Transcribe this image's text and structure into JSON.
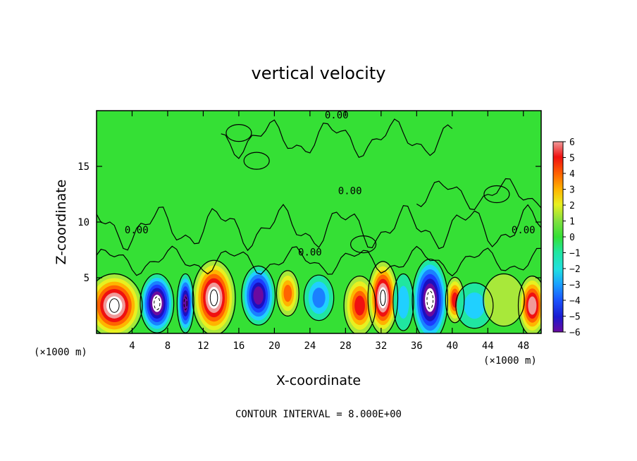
{
  "chart_data": {
    "type": "heatmap",
    "title": "vertical velocity",
    "xlabel": "X-coordinate",
    "ylabel": "Z-coordinate",
    "x_units_left": "(×1000 m)",
    "x_units_right": "(×1000 m)",
    "xlim": [
      0,
      50
    ],
    "ylim": [
      0,
      20
    ],
    "x_ticks": [
      4,
      8,
      12,
      16,
      20,
      24,
      28,
      32,
      36,
      40,
      44,
      48
    ],
    "y_ticks": [
      5,
      10,
      15
    ],
    "colorbar": {
      "range": [
        -6,
        6
      ],
      "ticks": [
        "6",
        "5",
        "4",
        "3",
        "2",
        "1",
        "0",
        "−1",
        "−2",
        "−3",
        "−4",
        "−5",
        "−6"
      ]
    },
    "contour_label": "0.00",
    "footer": "CONTOUR INTERVAL = 8.000E+00",
    "cells": [
      {
        "x": 2.0,
        "z": 2.5,
        "w": 6.5,
        "rx": 3.0,
        "rz": 2.8
      },
      {
        "x": 6.8,
        "z": 2.7,
        "w": -6.5,
        "rx": 1.8,
        "rz": 2.6
      },
      {
        "x": 10.0,
        "z": 2.7,
        "w": -6.0,
        "rx": 0.9,
        "rz": 2.6
      },
      {
        "x": 13.2,
        "z": 3.2,
        "w": 7.0,
        "rx": 2.3,
        "rz": 3.3
      },
      {
        "x": 18.2,
        "z": 3.4,
        "w": -5.5,
        "rx": 1.8,
        "rz": 2.6
      },
      {
        "x": 21.5,
        "z": 3.6,
        "w": 4.0,
        "rx": 1.2,
        "rz": 2.0
      },
      {
        "x": 25.0,
        "z": 3.2,
        "w": -3.0,
        "rx": 1.6,
        "rz": 2.0
      },
      {
        "x": 29.6,
        "z": 2.5,
        "w": 5.0,
        "rx": 1.7,
        "rz": 2.6
      },
      {
        "x": 32.2,
        "z": 3.2,
        "w": 6.5,
        "rx": 1.6,
        "rz": 3.2
      },
      {
        "x": 34.5,
        "z": 2.8,
        "w": -2.0,
        "rx": 1.1,
        "rz": 2.5
      },
      {
        "x": 37.5,
        "z": 3.0,
        "w": -6.5,
        "rx": 1.9,
        "rz": 3.6
      },
      {
        "x": 40.3,
        "z": 3.0,
        "w": 4.5,
        "rx": 1.0,
        "rz": 2.0
      },
      {
        "x": 42.5,
        "z": 2.5,
        "w": -1.2,
        "rx": 2.0,
        "rz": 2.0
      },
      {
        "x": 45.8,
        "z": 3.0,
        "w": 0.8,
        "rx": 2.2,
        "rz": 2.3
      },
      {
        "x": 49.0,
        "z": 2.5,
        "w": 5.5,
        "rx": 1.5,
        "rz": 2.6
      }
    ]
  }
}
